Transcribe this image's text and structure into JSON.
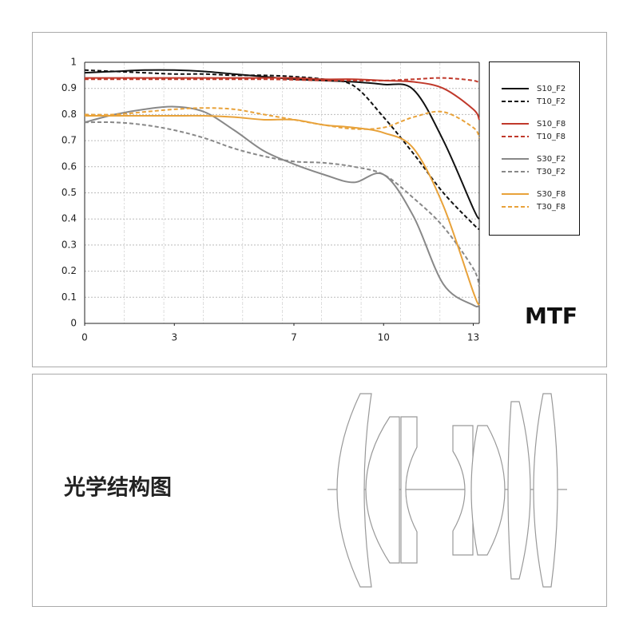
{
  "chart_data": {
    "type": "line",
    "annotation": "MTF",
    "x": [
      0,
      1,
      2,
      3,
      4,
      5,
      6,
      7,
      8,
      9,
      10,
      11,
      12,
      13,
      13.2
    ],
    "xlim": [
      0,
      13.2
    ],
    "xticks": [
      0,
      3,
      7,
      10,
      13
    ],
    "ylim": [
      0,
      1
    ],
    "yticks": [
      0,
      0.1,
      0.2,
      0.3,
      0.4,
      0.5,
      0.6,
      0.7,
      0.8,
      0.9,
      1
    ],
    "grid": true,
    "legend": "right",
    "series": [
      {
        "name": "S10_F2",
        "color": "#111111",
        "dashed": false,
        "values": [
          0.96,
          0.965,
          0.97,
          0.97,
          0.965,
          0.955,
          0.945,
          0.935,
          0.93,
          0.925,
          0.915,
          0.895,
          0.7,
          0.44,
          0.4
        ]
      },
      {
        "name": "T10_F2",
        "color": "#111111",
        "dashed": true,
        "values": [
          0.97,
          0.965,
          0.96,
          0.955,
          0.955,
          0.95,
          0.95,
          0.945,
          0.935,
          0.91,
          0.79,
          0.65,
          0.5,
          0.38,
          0.36
        ]
      },
      {
        "name": "S10_F8",
        "color": "#c0392b",
        "dashed": false,
        "values": [
          0.94,
          0.94,
          0.94,
          0.94,
          0.94,
          0.94,
          0.94,
          0.94,
          0.935,
          0.935,
          0.93,
          0.925,
          0.9,
          0.82,
          0.78
        ]
      },
      {
        "name": "T10_F8",
        "color": "#c0392b",
        "dashed": true,
        "values": [
          0.935,
          0.935,
          0.935,
          0.935,
          0.935,
          0.935,
          0.935,
          0.933,
          0.93,
          0.93,
          0.93,
          0.935,
          0.94,
          0.93,
          0.92
        ]
      },
      {
        "name": "S30_F2",
        "color": "#888888",
        "dashed": false,
        "values": [
          0.77,
          0.8,
          0.82,
          0.83,
          0.81,
          0.74,
          0.66,
          0.61,
          0.57,
          0.54,
          0.57,
          0.41,
          0.15,
          0.07,
          0.07
        ]
      },
      {
        "name": "T30_F2",
        "color": "#888888",
        "dashed": true,
        "values": [
          0.77,
          0.77,
          0.76,
          0.74,
          0.71,
          0.67,
          0.64,
          0.62,
          0.615,
          0.6,
          0.57,
          0.48,
          0.37,
          0.21,
          0.14
        ]
      },
      {
        "name": "S30_F8",
        "color": "#e8a23a",
        "dashed": false,
        "values": [
          0.795,
          0.795,
          0.795,
          0.795,
          0.795,
          0.79,
          0.78,
          0.78,
          0.76,
          0.75,
          0.73,
          0.67,
          0.45,
          0.12,
          0.07
        ]
      },
      {
        "name": "T30_F8",
        "color": "#e8a23a",
        "dashed": true,
        "values": [
          0.8,
          0.8,
          0.81,
          0.82,
          0.825,
          0.82,
          0.8,
          0.78,
          0.76,
          0.745,
          0.75,
          0.79,
          0.81,
          0.75,
          0.71
        ]
      }
    ]
  },
  "diagram": {
    "title": "光学结构图"
  }
}
